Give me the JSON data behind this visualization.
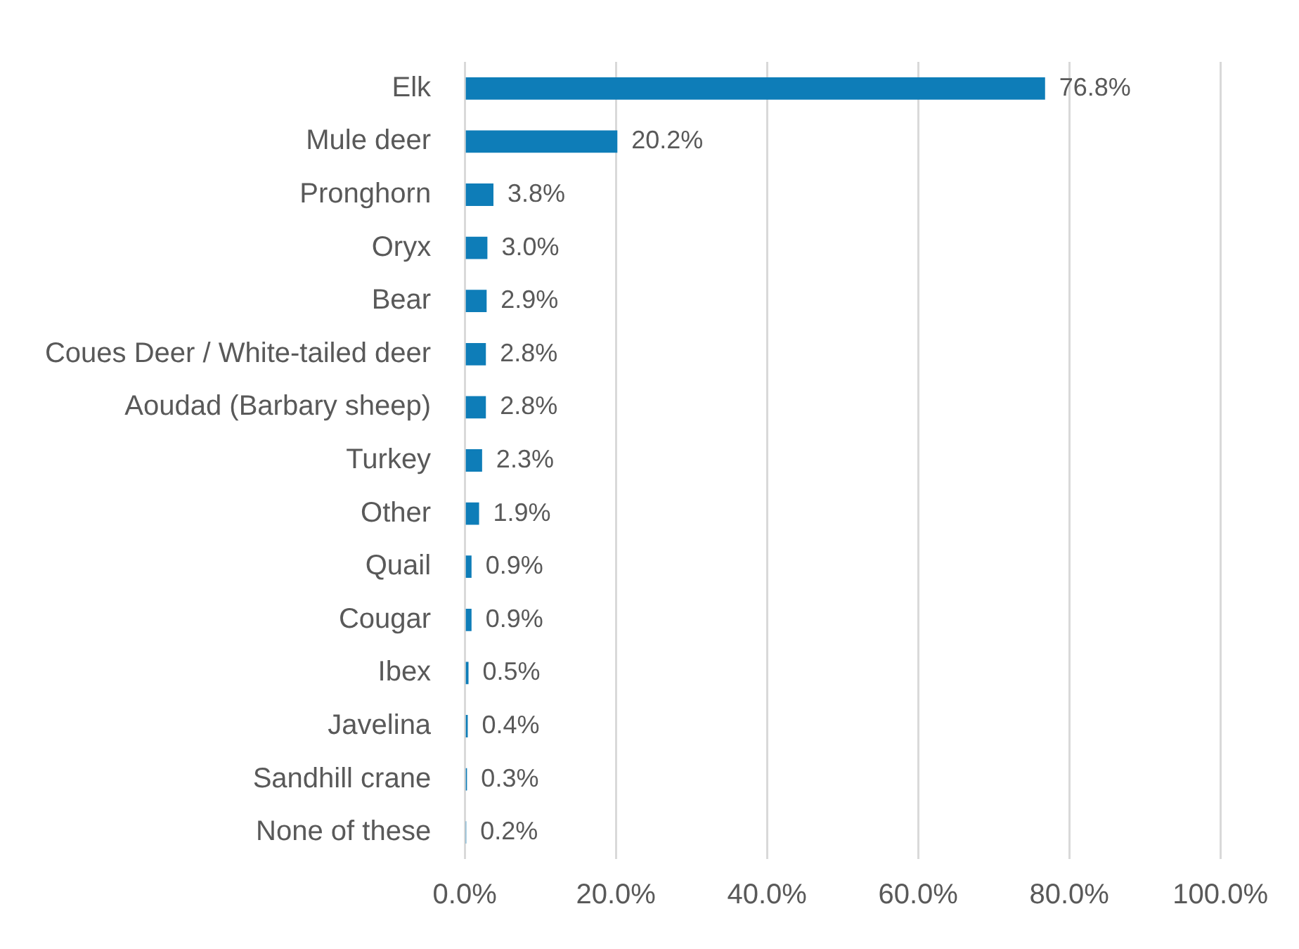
{
  "chart_data": {
    "type": "bar",
    "orientation": "horizontal",
    "categories": [
      "Elk",
      "Mule deer",
      "Pronghorn",
      "Oryx",
      "Bear",
      "Coues Deer / White-tailed deer",
      "Aoudad (Barbary sheep)",
      "Turkey",
      "Other",
      "Quail",
      "Cougar",
      "Ibex",
      "Javelina",
      "Sandhill crane",
      "None of these"
    ],
    "values": [
      76.8,
      20.2,
      3.8,
      3.0,
      2.9,
      2.8,
      2.8,
      2.3,
      1.9,
      0.9,
      0.9,
      0.5,
      0.4,
      0.3,
      0.2
    ],
    "value_labels": [
      "76.8%",
      "20.2%",
      "3.8%",
      "3.0%",
      "2.9%",
      "2.8%",
      "2.8%",
      "2.3%",
      "1.9%",
      "0.9%",
      "0.9%",
      "0.5%",
      "0.4%",
      "0.3%",
      "0.2%"
    ],
    "color": "#0e7db8",
    "xlim": [
      0,
      100
    ],
    "xticks": [
      {
        "value": 0,
        "label": "0.0%"
      },
      {
        "value": 20,
        "label": "20.0%"
      },
      {
        "value": 40,
        "label": "40.0%"
      },
      {
        "value": 60,
        "label": "60.0%"
      },
      {
        "value": 80,
        "label": "80.0%"
      },
      {
        "value": 100,
        "label": "100.0%"
      }
    ],
    "grid": "x",
    "legend": false
  }
}
